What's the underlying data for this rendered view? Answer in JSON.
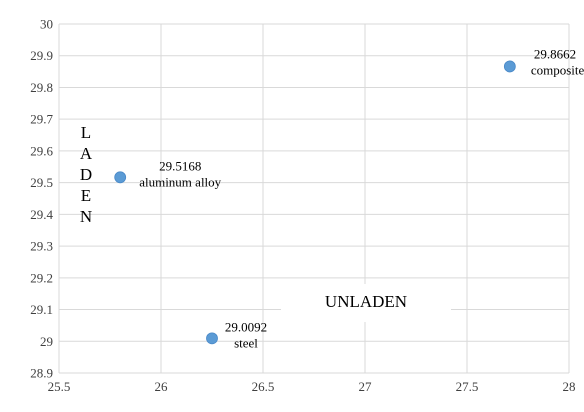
{
  "chart_data": {
    "type": "scatter",
    "title": "",
    "xlabel": "UNLADEN",
    "ylabel": "LADEN",
    "xlim": [
      25.5,
      28
    ],
    "ylim": [
      28.9,
      30
    ],
    "x_ticks": [
      "25.5",
      "26",
      "26.5",
      "27",
      "27.5",
      "28"
    ],
    "y_ticks": [
      "28.9",
      "29",
      "29.1",
      "29.2",
      "29.3",
      "29.4",
      "29.5",
      "29.6",
      "29.7",
      "29.8",
      "29.9",
      "30"
    ],
    "grid": true,
    "marker_color": "#5b9bd5",
    "points": [
      {
        "x": 25.8,
        "y": 29.5168,
        "value_label": "29.5168",
        "name": "aluminum alloy"
      },
      {
        "x": 26.25,
        "y": 29.0092,
        "value_label": "29.0092",
        "name": "steel"
      },
      {
        "x": 27.71,
        "y": 29.8662,
        "value_label": "29.8662",
        "name": "composite"
      }
    ]
  }
}
